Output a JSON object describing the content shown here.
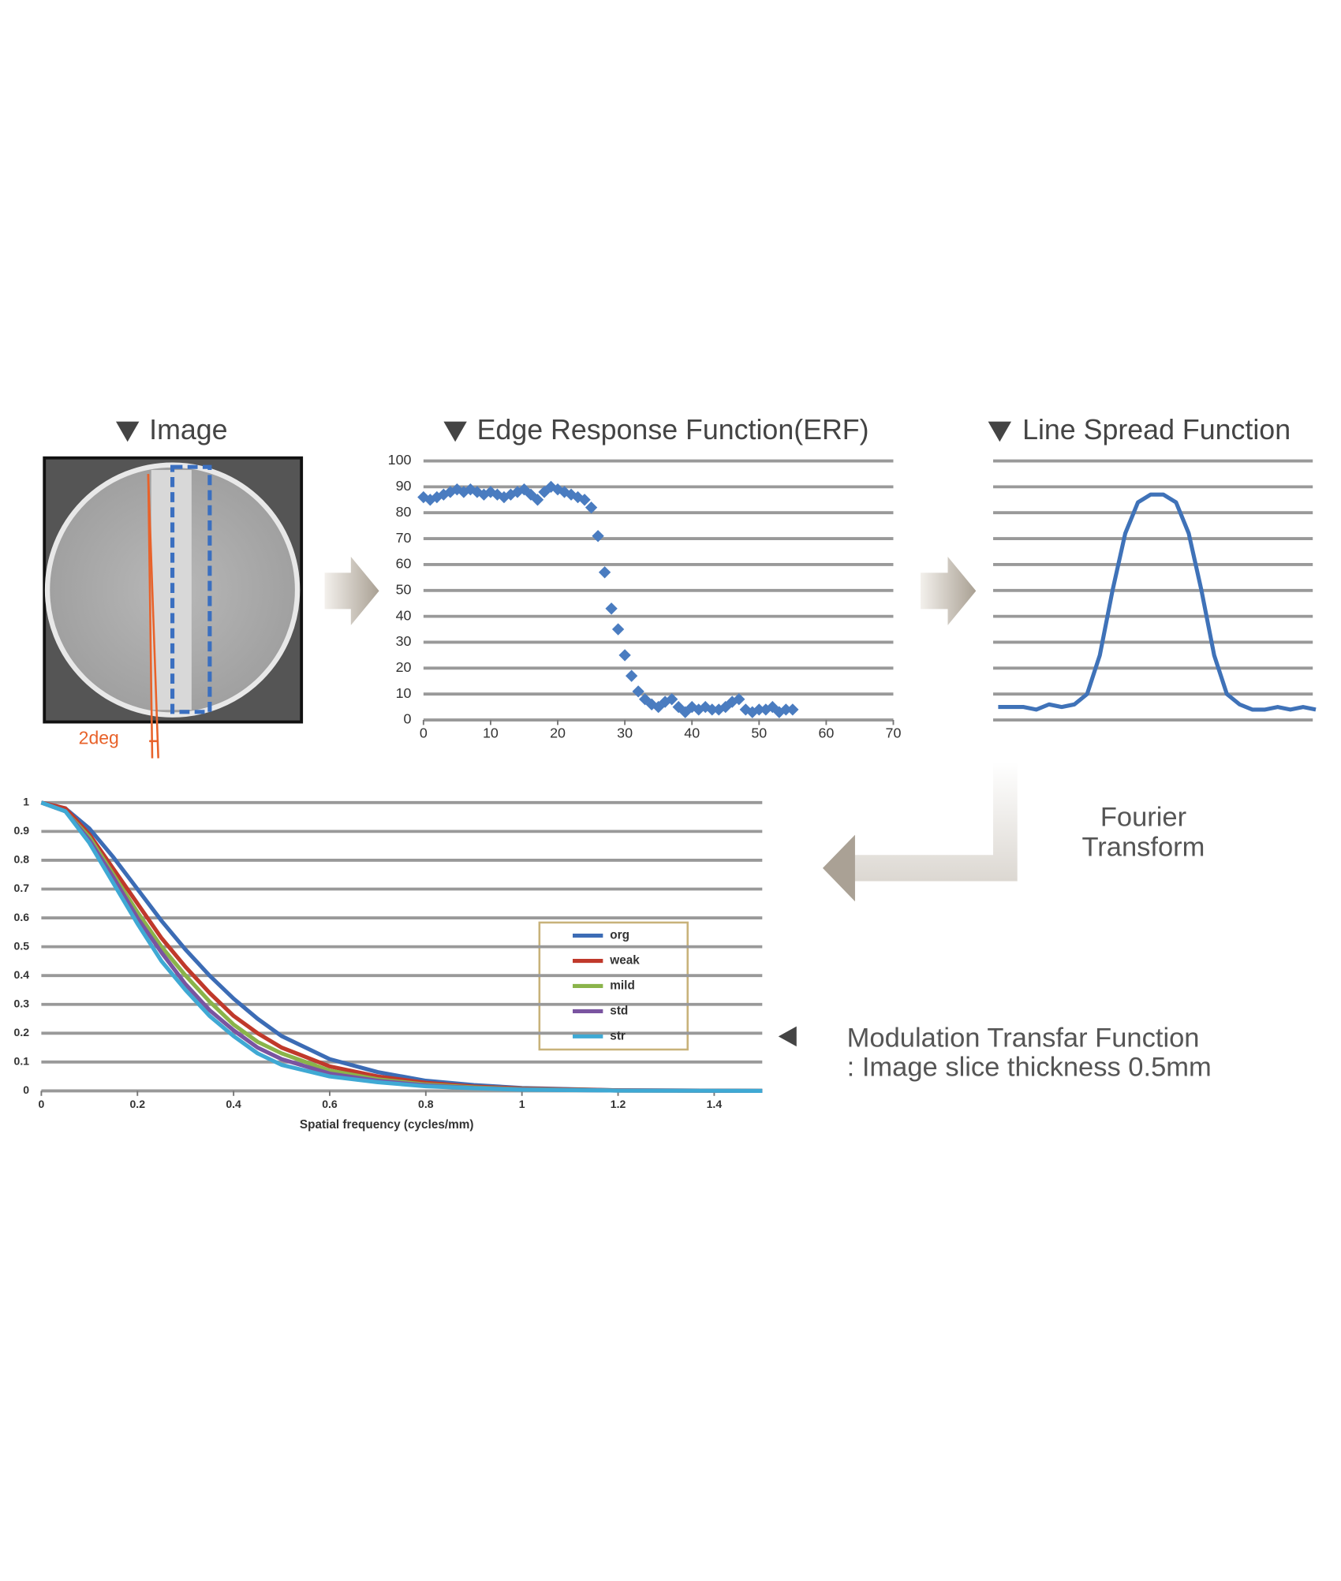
{
  "image_panel": {
    "title": "Image",
    "angle_label": "2deg"
  },
  "chart_data": [
    {
      "type": "scatter",
      "title": "Edge Response Function(ERF)",
      "color": "#4a7cc0",
      "x": [
        0,
        1,
        2,
        3,
        4,
        5,
        6,
        7,
        8,
        9,
        10,
        11,
        12,
        13,
        14,
        15,
        16,
        17,
        18,
        19,
        20,
        21,
        22,
        23,
        24,
        25,
        26,
        27,
        28,
        29,
        30,
        31,
        32,
        33,
        34,
        35,
        36,
        37,
        38,
        39,
        40,
        41,
        42,
        43,
        44,
        45,
        46,
        47,
        48,
        49,
        50,
        51,
        52,
        53,
        54,
        55
      ],
      "values": [
        86,
        85,
        86,
        87,
        88,
        89,
        88,
        89,
        88,
        87,
        88,
        87,
        86,
        87,
        88,
        89,
        87,
        85,
        88,
        90,
        89,
        88,
        87,
        86,
        85,
        82,
        71,
        57,
        43,
        35,
        25,
        17,
        11,
        8,
        6,
        5,
        7,
        8,
        5,
        3,
        5,
        4,
        5,
        4,
        4,
        5,
        7,
        8,
        4,
        3,
        4,
        4,
        5,
        3,
        4,
        4
      ],
      "xlim": [
        0,
        70
      ],
      "ylim": [
        0,
        100
      ],
      "xticks": [
        0,
        10,
        20,
        30,
        40,
        50,
        60,
        70
      ],
      "yticks": [
        0,
        10,
        20,
        30,
        40,
        50,
        60,
        70,
        80,
        90,
        100
      ],
      "grid": true
    },
    {
      "type": "line",
      "title": "Line Spread Function",
      "color": "#3f72b8",
      "x": [
        0,
        4,
        8,
        12,
        16,
        20,
        24,
        28,
        32,
        36,
        40,
        44,
        48,
        52,
        56,
        60,
        64,
        68,
        72,
        76,
        80,
        84,
        88,
        92,
        96,
        100
      ],
      "values": [
        5,
        5,
        5,
        4,
        6,
        5,
        6,
        10,
        25,
        50,
        72,
        84,
        87,
        87,
        84,
        72,
        50,
        25,
        10,
        6,
        4,
        4,
        5,
        4,
        5,
        4
      ],
      "xlim": [
        0,
        100
      ],
      "ylim": [
        0,
        100
      ]
    },
    {
      "type": "multiline",
      "x_label": "Spatial frequency (cycles/mm)",
      "x": [
        0,
        0.05,
        0.1,
        0.15,
        0.2,
        0.25,
        0.3,
        0.35,
        0.4,
        0.45,
        0.5,
        0.6,
        0.7,
        0.8,
        0.9,
        1.0,
        1.2,
        1.5
      ],
      "series": [
        {
          "name": "org",
          "color": "#3c6cb5",
          "values": [
            1,
            0.98,
            0.91,
            0.81,
            0.7,
            0.59,
            0.49,
            0.4,
            0.32,
            0.25,
            0.19,
            0.11,
            0.065,
            0.035,
            0.02,
            0.01,
            0.002,
            0
          ]
        },
        {
          "name": "weak",
          "color": "#c0392b",
          "values": [
            1,
            0.98,
            0.89,
            0.77,
            0.65,
            0.53,
            0.43,
            0.34,
            0.26,
            0.2,
            0.15,
            0.085,
            0.05,
            0.028,
            0.015,
            0.008,
            0.002,
            0
          ]
        },
        {
          "name": "mild",
          "color": "#8ab44a",
          "values": [
            1,
            0.97,
            0.88,
            0.75,
            0.62,
            0.5,
            0.4,
            0.31,
            0.23,
            0.17,
            0.13,
            0.07,
            0.04,
            0.022,
            0.012,
            0.006,
            0.001,
            0
          ]
        },
        {
          "name": "std",
          "color": "#7a54a0",
          "values": [
            1,
            0.97,
            0.87,
            0.74,
            0.6,
            0.48,
            0.37,
            0.28,
            0.21,
            0.15,
            0.11,
            0.06,
            0.035,
            0.019,
            0.01,
            0.005,
            0.001,
            0
          ]
        },
        {
          "name": "str",
          "color": "#3fa9d4",
          "values": [
            1,
            0.97,
            0.86,
            0.72,
            0.58,
            0.45,
            0.35,
            0.26,
            0.19,
            0.13,
            0.09,
            0.05,
            0.03,
            0.016,
            0.009,
            0.004,
            0.001,
            0
          ]
        }
      ],
      "xlim": [
        0,
        1.5
      ],
      "ylim": [
        0,
        1
      ],
      "xticks": [
        0,
        0.2,
        0.4,
        0.6,
        0.8,
        1,
        1.2,
        1.4
      ],
      "yticks": [
        0,
        0.1,
        0.2,
        0.3,
        0.4,
        0.5,
        0.6,
        0.7,
        0.8,
        0.9,
        1
      ],
      "grid": true
    }
  ],
  "transform_label": [
    "Fourier",
    "Transform"
  ],
  "mtf_caption": [
    "Modulation Transfar Function",
    ": Image slice thickness 0.5mm"
  ]
}
